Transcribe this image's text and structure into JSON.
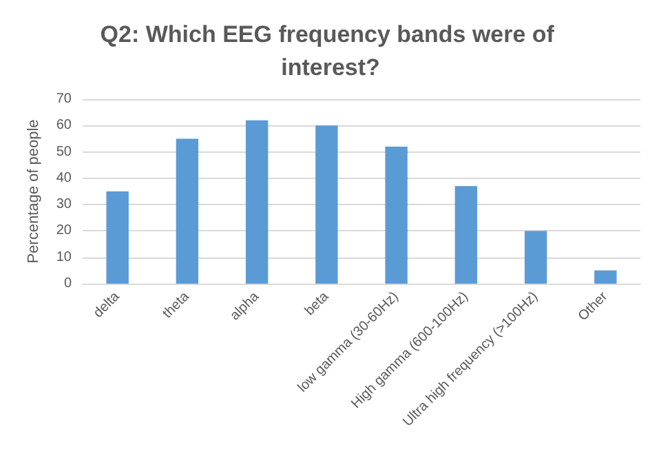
{
  "chart_data": {
    "type": "bar",
    "title": "Q2: Which EEG frequency bands were of interest?",
    "ylabel": "Percentage of people",
    "categories": [
      "delta",
      "theta",
      "alpha",
      "beta",
      "low gamma (30-60Hz)",
      "High gamma (600-100Hz)",
      "Ultra high frequency (>100Hz)",
      "Other"
    ],
    "values": [
      35,
      55,
      62,
      60,
      52,
      37,
      20,
      5
    ],
    "color": "#5b9bd5",
    "ylim": [
      0,
      70
    ],
    "yticks": [
      0,
      10,
      20,
      30,
      40,
      50,
      60,
      70
    ],
    "grid": "y"
  }
}
